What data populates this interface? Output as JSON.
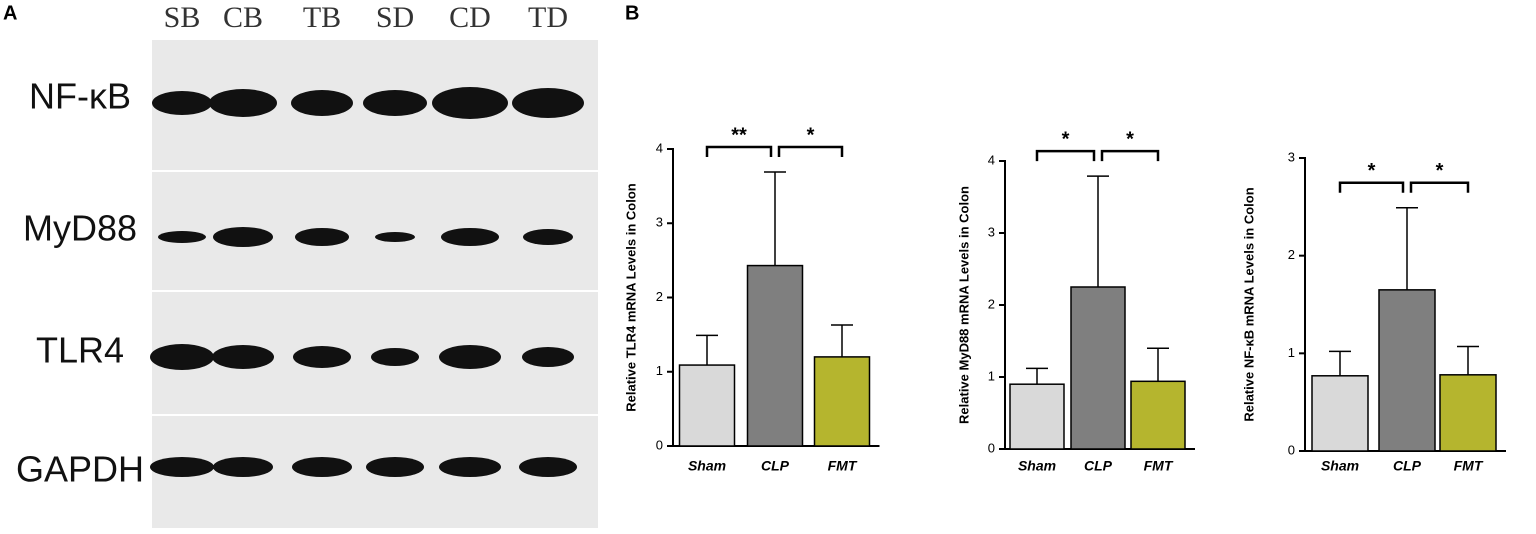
{
  "panel_a": {
    "label": "A",
    "lanes": [
      "SB",
      "CB",
      "TB",
      "SD",
      "CD",
      "TD"
    ],
    "rows": [
      "NF-κB",
      "MyD88",
      "TLR4",
      "GAPDH"
    ]
  },
  "panel_b": {
    "label": "B"
  },
  "chart_data": [
    {
      "type": "bar",
      "y_label": "Relative TLR4 mRNA Levels in Colon",
      "categories": [
        "Sham",
        "CLP",
        "FMT"
      ],
      "values": [
        1.09,
        2.43,
        1.2
      ],
      "errors": [
        0.4,
        1.26,
        0.43
      ],
      "colors": [
        "#d9d9d9",
        "#7f7f7f",
        "#b5b52e"
      ],
      "ylim": [
        0,
        4
      ],
      "yticks": [
        0,
        1,
        2,
        3,
        4
      ],
      "comparisons": [
        {
          "groups": [
            "Sham",
            "CLP"
          ],
          "label": "**"
        },
        {
          "groups": [
            "CLP",
            "FMT"
          ],
          "label": "*"
        }
      ]
    },
    {
      "type": "bar",
      "y_label": "Relative MyD88 mRNA Levels in Colon",
      "categories": [
        "Sham",
        "CLP",
        "FMT"
      ],
      "values": [
        0.9,
        2.25,
        0.94
      ],
      "errors": [
        0.22,
        1.54,
        0.46
      ],
      "colors": [
        "#d9d9d9",
        "#7f7f7f",
        "#b5b52e"
      ],
      "ylim": [
        0,
        4
      ],
      "yticks": [
        0,
        1,
        2,
        3,
        4
      ],
      "comparisons": [
        {
          "groups": [
            "Sham",
            "CLP"
          ],
          "label": "*"
        },
        {
          "groups": [
            "CLP",
            "FMT"
          ],
          "label": "*"
        }
      ]
    },
    {
      "type": "bar",
      "y_label": "Relative NF-κB mRNA Levels in Colon",
      "categories": [
        "Sham",
        "CLP",
        "FMT"
      ],
      "values": [
        0.77,
        1.65,
        0.78
      ],
      "errors": [
        0.25,
        0.84,
        0.29
      ],
      "colors": [
        "#d9d9d9",
        "#7f7f7f",
        "#b5b52e"
      ],
      "ylim": [
        0,
        3
      ],
      "yticks": [
        0,
        1,
        2,
        3
      ],
      "comparisons": [
        {
          "groups": [
            "Sham",
            "CLP"
          ],
          "label": "*"
        },
        {
          "groups": [
            "CLP",
            "FMT"
          ],
          "label": "*"
        }
      ]
    }
  ]
}
